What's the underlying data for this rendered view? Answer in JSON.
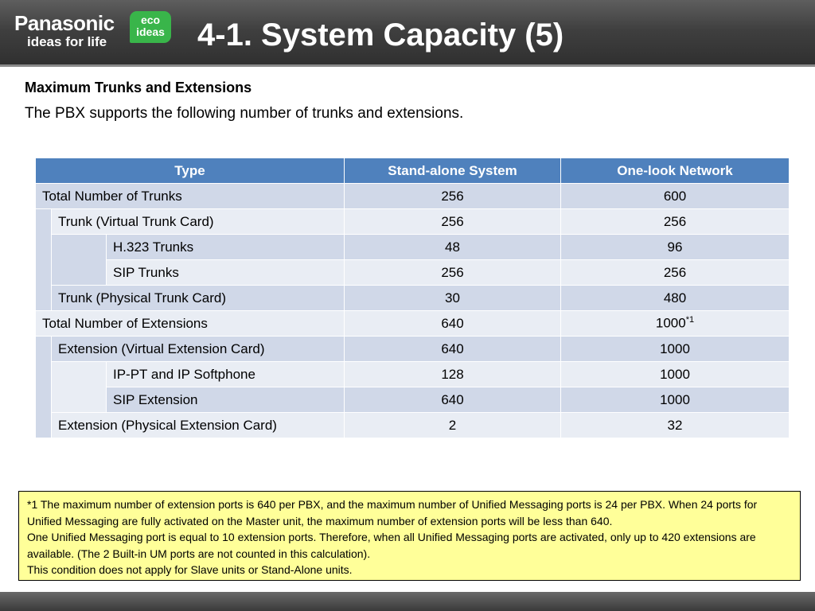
{
  "header": {
    "brand_name": "Panasonic",
    "brand_tagline": "ideas for life",
    "eco_line1": "eco",
    "eco_line2": "ideas",
    "title": "4-1. System Capacity (5)"
  },
  "intro": {
    "subhead": "Maximum Trunks and Extensions",
    "text": "The PBX supports the following number of trunks and extensions."
  },
  "table": {
    "headers": [
      "Type",
      "Stand-alone System",
      "One-look Network"
    ],
    "rows": [
      {
        "label": "Total Number of Trunks",
        "standalone": "256",
        "onelook": "600"
      },
      {
        "label": "Trunk (Virtual Trunk Card)",
        "standalone": "256",
        "onelook": "256"
      },
      {
        "label": "H.323 Trunks",
        "standalone": "48",
        "onelook": "96"
      },
      {
        "label": "SIP Trunks",
        "standalone": "256",
        "onelook": "256"
      },
      {
        "label": "Trunk (Physical Trunk Card)",
        "standalone": "30",
        "onelook": "480"
      },
      {
        "label": "Total Number of Extensions",
        "standalone": "640",
        "onelook": "1000",
        "onelook_sup": "*1"
      },
      {
        "label": "Extension (Virtual Extension Card)",
        "standalone": "640",
        "onelook": "1000"
      },
      {
        "label": "IP-PT and IP Softphone",
        "standalone": "128",
        "onelook": "1000"
      },
      {
        "label": "SIP Extension",
        "standalone": "640",
        "onelook": "1000"
      },
      {
        "label": "Extension (Physical Extension Card)",
        "standalone": "2",
        "onelook": "32"
      }
    ]
  },
  "note": {
    "line1": "*1 The maximum number of extension ports is 640 per PBX, and the maximum number of Unified Messaging ports is 24 per PBX. When 24 ports for Unified Messaging are fully activated on the Master unit, the maximum number of extension ports will be less than 640.",
    "line2": "One Unified Messaging port is equal to 10 extension ports. Therefore, when all Unified Messaging ports are activated, only up to 420 extensions are available.  (The 2 Built-in UM ports are not counted in this calculation).",
    "line3": "This condition does not apply for Slave units or Stand-Alone units."
  }
}
